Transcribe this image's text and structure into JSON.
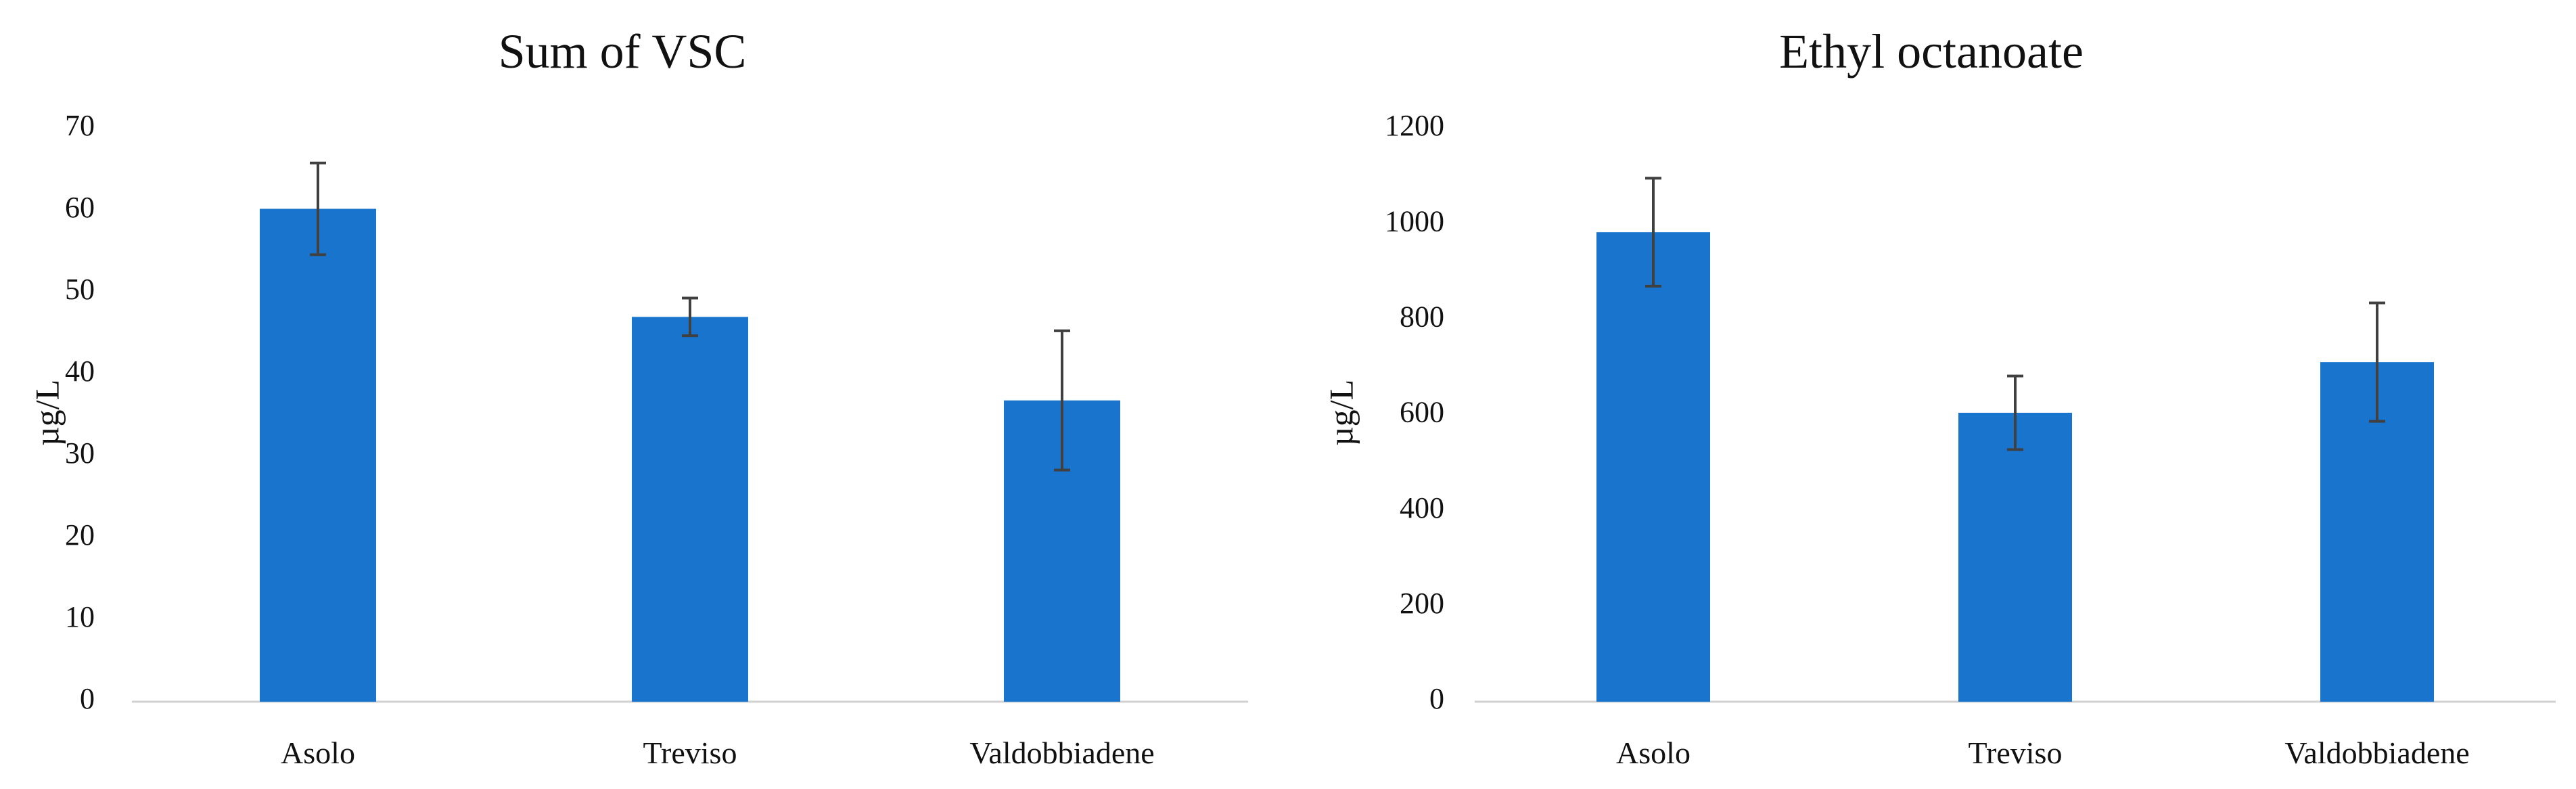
{
  "chart_data": [
    {
      "type": "bar",
      "title": "Sum of VSC",
      "xlabel": "",
      "ylabel": "µg/L",
      "categories": [
        "Asolo",
        "Treviso",
        "Valdobbiadene"
      ],
      "values": [
        60.2,
        47.0,
        36.8
      ],
      "errors": [
        5.6,
        2.3,
        8.5
      ],
      "ylim": [
        0,
        70
      ],
      "yticks": [
        0,
        10,
        20,
        30,
        40,
        50,
        60,
        70
      ],
      "bar_color": "#1874CD",
      "error_color": "#404040",
      "grid": false,
      "legend": "none"
    },
    {
      "type": "bar",
      "title": "Ethyl octanoate",
      "xlabel": "",
      "ylabel": "µg/L",
      "categories": [
        "Asolo",
        "Treviso",
        "Valdobbiadene"
      ],
      "values": [
        983,
        605,
        711
      ],
      "errors": [
        113,
        77,
        124
      ],
      "ylim": [
        0,
        1200
      ],
      "yticks": [
        0,
        200,
        400,
        600,
        800,
        1000,
        1200
      ],
      "bar_color": "#1874CD",
      "error_color": "#404040",
      "grid": false,
      "legend": "none"
    }
  ]
}
